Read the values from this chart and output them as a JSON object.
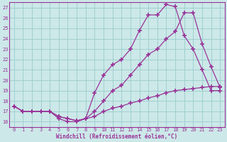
{
  "xlabel": "Windchill (Refroidissement éolien,°C)",
  "ylabel": "",
  "bg_color": "#cce8e8",
  "grid_color": "#99cccc",
  "line_color": "#993399",
  "x_ticks": [
    0,
    1,
    2,
    3,
    4,
    5,
    6,
    7,
    8,
    9,
    10,
    11,
    12,
    13,
    14,
    15,
    16,
    17,
    18,
    19,
    20,
    21,
    22,
    23
  ],
  "y_ticks": [
    16,
    17,
    18,
    19,
    20,
    21,
    22,
    23,
    24,
    25,
    26,
    27
  ],
  "xlim": [
    -0.5,
    23.5
  ],
  "ylim": [
    15.5,
    27.5
  ],
  "line1_x": [
    0,
    1,
    2,
    3,
    4,
    5,
    6,
    7,
    8,
    9,
    10,
    11,
    12,
    13,
    14,
    15,
    16,
    17,
    18,
    19,
    20,
    21,
    22,
    23
  ],
  "line1_y": [
    17.5,
    17.0,
    17.0,
    17.0,
    17.0,
    16.3,
    16.0,
    16.0,
    16.3,
    18.8,
    20.5,
    21.5,
    22.0,
    23.0,
    24.8,
    26.3,
    26.3,
    27.3,
    27.1,
    24.3,
    23.0,
    21.0,
    19.0,
    19.0
  ],
  "line2_x": [
    0,
    1,
    2,
    3,
    4,
    5,
    6,
    7,
    8,
    9,
    10,
    11,
    12,
    13,
    14,
    15,
    16,
    17,
    18,
    19,
    20,
    21,
    22,
    23
  ],
  "line2_y": [
    17.5,
    17.0,
    17.0,
    17.0,
    17.0,
    16.5,
    16.3,
    16.1,
    16.3,
    17.0,
    18.0,
    19.0,
    19.5,
    20.5,
    21.5,
    22.5,
    23.0,
    24.0,
    24.7,
    26.5,
    26.5,
    23.5,
    21.3,
    19.3
  ],
  "line3_x": [
    0,
    1,
    2,
    3,
    4,
    5,
    6,
    7,
    8,
    9,
    10,
    11,
    12,
    13,
    14,
    15,
    16,
    17,
    18,
    19,
    20,
    21,
    22,
    23
  ],
  "line3_y": [
    17.5,
    17.0,
    17.0,
    17.0,
    17.0,
    16.5,
    16.3,
    16.1,
    16.3,
    16.5,
    17.0,
    17.3,
    17.5,
    17.8,
    18.0,
    18.3,
    18.5,
    18.8,
    19.0,
    19.1,
    19.2,
    19.3,
    19.4,
    19.4
  ]
}
